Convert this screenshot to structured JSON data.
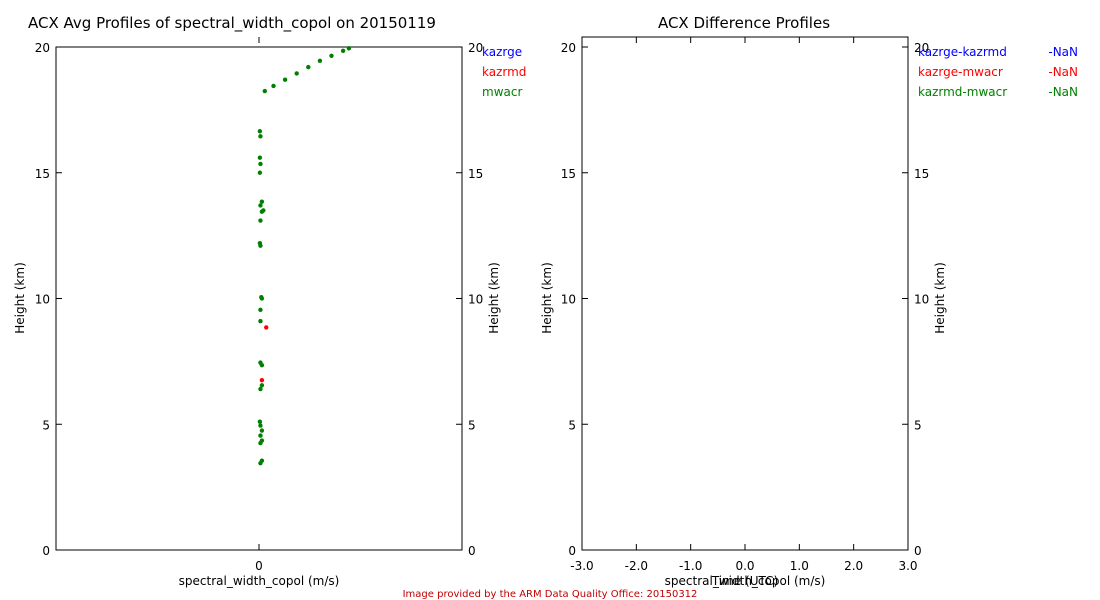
{
  "colors": {
    "blue": "#0000ff",
    "red": "#ff0000",
    "green": "#008000",
    "credit": "#c00000"
  },
  "credit": "Image provided by the ARM Data Quality Office: 20150312",
  "chart_data": [
    {
      "type": "scatter",
      "title": "ACX Avg Profiles of spectral_width_copol on 20150119",
      "xlabel": "spectral_width_copol (m/s)",
      "ylabel": "Height (km)",
      "ylabel_right": "Height (km)",
      "xlim": [
        -0.7,
        0.7
      ],
      "ylim": [
        0,
        20
      ],
      "xticks": [
        0
      ],
      "xtick_labels": [
        "0"
      ],
      "yticks": [
        0,
        5,
        10,
        15,
        20
      ],
      "ytick_labels": [
        "0",
        "5",
        "10",
        "15",
        "20"
      ],
      "legend_position": "top-right",
      "series": [
        {
          "name": "kazrge",
          "color": "#0000ff",
          "points": []
        },
        {
          "name": "kazrmd",
          "color": "#ff0000",
          "points": [
            [
              0.025,
              8.85
            ],
            [
              0.01,
              6.75
            ]
          ]
        },
        {
          "name": "mwacr",
          "color": "#008000",
          "points": [
            [
              0.005,
              3.45
            ],
            [
              0.01,
              3.55
            ],
            [
              0.005,
              4.25
            ],
            [
              0.01,
              4.35
            ],
            [
              0.005,
              4.55
            ],
            [
              0.01,
              4.75
            ],
            [
              0.005,
              4.95
            ],
            [
              0.003,
              5.1
            ],
            [
              0.005,
              6.4
            ],
            [
              0.01,
              6.55
            ],
            [
              0.01,
              7.35
            ],
            [
              0.005,
              7.45
            ],
            [
              0.005,
              9.1
            ],
            [
              0.005,
              9.55
            ],
            [
              0.01,
              10.0
            ],
            [
              0.008,
              10.05
            ],
            [
              0.005,
              12.1
            ],
            [
              0.003,
              12.2
            ],
            [
              0.01,
              13.45
            ],
            [
              0.015,
              13.5
            ],
            [
              0.005,
              13.7
            ],
            [
              0.01,
              13.85
            ],
            [
              0.005,
              13.1
            ],
            [
              0.003,
              15.0
            ],
            [
              0.005,
              15.35
            ],
            [
              0.003,
              15.6
            ],
            [
              0.005,
              16.45
            ],
            [
              0.003,
              16.65
            ],
            [
              0.02,
              18.25
            ],
            [
              0.05,
              18.45
            ],
            [
              0.09,
              18.7
            ],
            [
              0.13,
              18.95
            ],
            [
              0.17,
              19.2
            ],
            [
              0.21,
              19.45
            ],
            [
              0.25,
              19.65
            ],
            [
              0.29,
              19.85
            ],
            [
              0.31,
              19.95
            ]
          ]
        }
      ]
    },
    {
      "type": "line",
      "title": "ACX Difference Profiles",
      "xlabel": "spectral_width_copol (m/s)",
      "xlabel_overlap": "Time (UTC)",
      "ylabel": "Height (km)",
      "ylabel_right": "Height (km)",
      "xlim": [
        -3.0,
        3.0
      ],
      "ylim": [
        0,
        20
      ],
      "xticks": [
        -3,
        -2,
        -1,
        0,
        1,
        2,
        3
      ],
      "xtick_labels": [
        "-3.0",
        "-2.0",
        "-1.0",
        "0.0",
        "1.0",
        "2.0",
        "3.0"
      ],
      "yticks": [
        0,
        5,
        10,
        15,
        20
      ],
      "ytick_labels": [
        "0",
        "5",
        "10",
        "15",
        "20"
      ],
      "legend_position": "top-right",
      "series": [
        {
          "name": "kazrge-kazrmd",
          "value_label": "-NaN",
          "color": "#0000ff",
          "values": []
        },
        {
          "name": "kazrge-mwacr",
          "value_label": "-NaN",
          "color": "#ff0000",
          "values": []
        },
        {
          "name": "kazrmd-mwacr",
          "value_label": "-NaN",
          "color": "#008000",
          "values": []
        }
      ]
    }
  ]
}
